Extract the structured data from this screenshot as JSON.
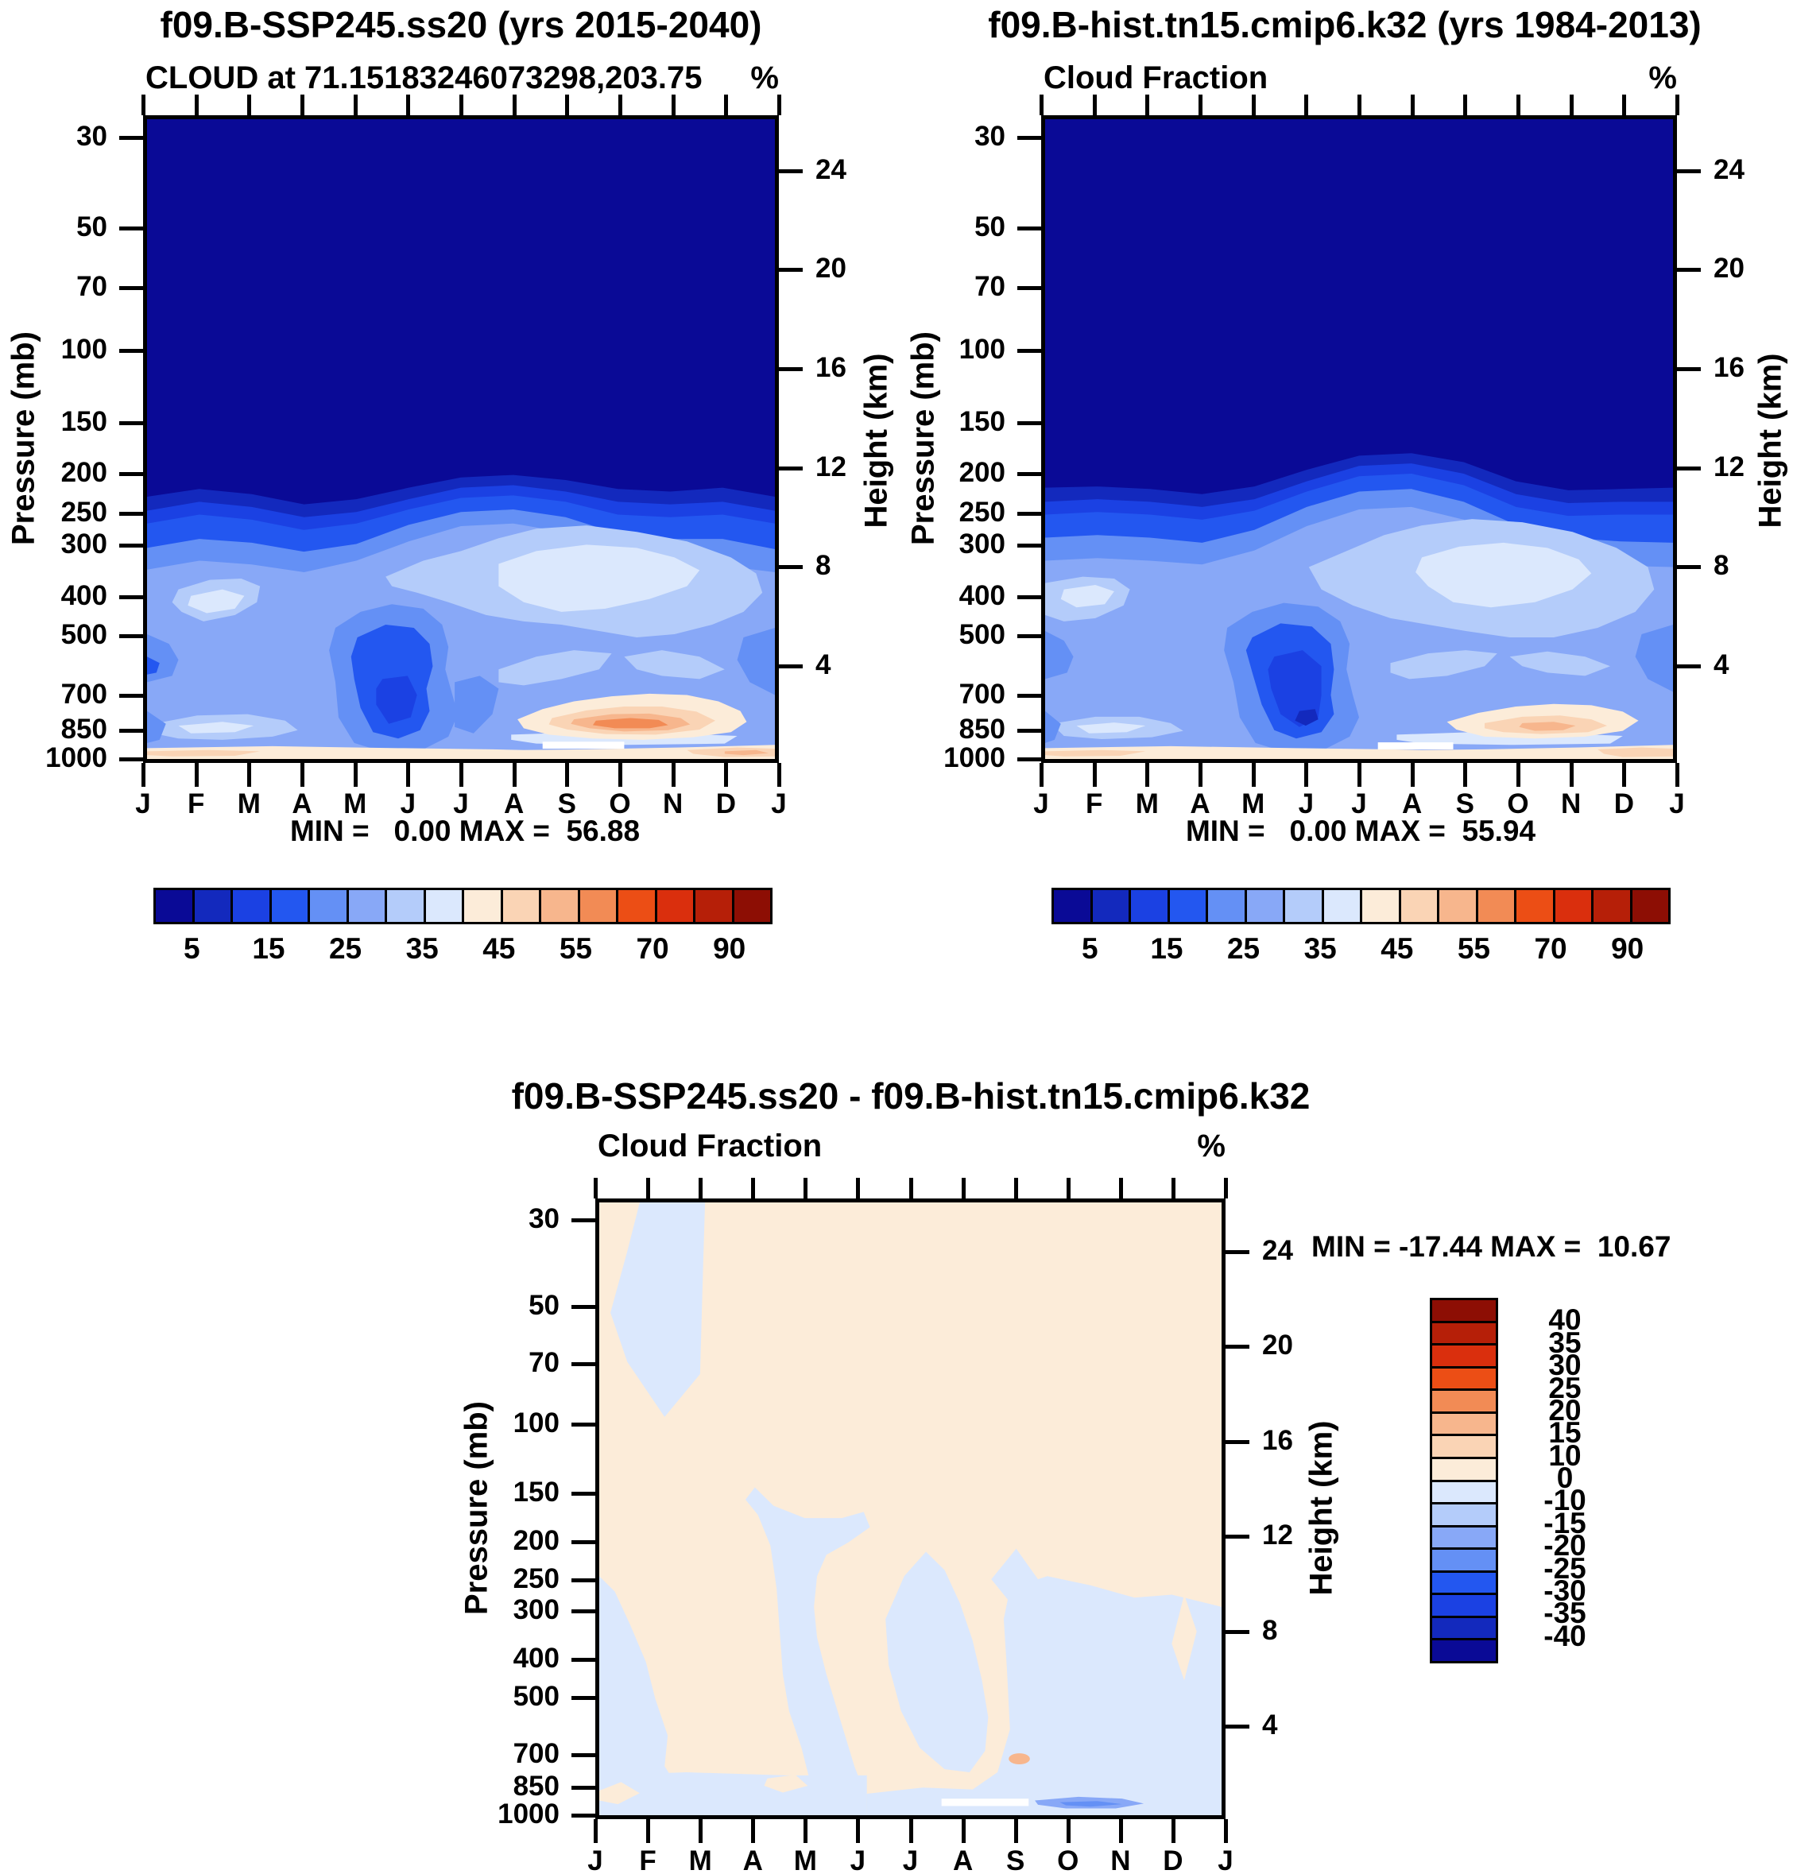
{
  "figure": {
    "background": "#ffffff",
    "months": [
      "J",
      "F",
      "M",
      "A",
      "M",
      "J",
      "J",
      "A",
      "S",
      "O",
      "N",
      "D",
      "J"
    ],
    "pressure_axis_label": "Pressure (mb)",
    "height_axis_label": "Height (km)",
    "pressure_ticks": [
      "30",
      "50",
      "70",
      "100",
      "150",
      "200",
      "250",
      "300",
      "400",
      "500",
      "700",
      "850",
      "1000"
    ],
    "height_ticks": [
      "24",
      "20",
      "16",
      "12",
      "8",
      "4"
    ],
    "unit": "%"
  },
  "panels": [
    {
      "title": "f09.B-SSP245.ss20 (yrs 2015-2040)",
      "subtitle": "CLOUD at 71.15183246073298,203.75",
      "unit": "%",
      "stats_text": "MIN =   0.00 MAX =  56.88"
    },
    {
      "title": "f09.B-hist.tn15.cmip6.k32 (yrs 1984-2013)",
      "subtitle": "Cloud Fraction",
      "unit": "%",
      "stats_text": "MIN =   0.00 MAX =  55.94"
    },
    {
      "title": "f09.B-SSP245.ss20 - f09.B-hist.tn15.cmip6.k32",
      "subtitle": "Cloud Fraction",
      "unit": "%",
      "stats_text": "MIN = -17.44 MAX =  10.67"
    }
  ],
  "colorbars": {
    "cloud": {
      "labels": [
        "5",
        "15",
        "25",
        "35",
        "45",
        "55",
        "70",
        "90"
      ],
      "colors": [
        "#0a0a96",
        "#1329bd",
        "#1b41e3",
        "#2357f0",
        "#6490f5",
        "#88a8f7",
        "#b4ccfa",
        "#dbe8fd",
        "#fcecd9",
        "#fad4b5",
        "#f7b68d",
        "#f28b55",
        "#ec4e15",
        "#da2f0d",
        "#b61f08",
        "#8d0e04"
      ]
    },
    "diff": {
      "labels": [
        "40",
        "35",
        "30",
        "25",
        "20",
        "15",
        "10",
        "0",
        "-10",
        "-15",
        "-20",
        "-25",
        "-30",
        "-35",
        "-40"
      ],
      "colors": [
        "#8d0e04",
        "#b61f08",
        "#da2f0d",
        "#ec4e15",
        "#f28b55",
        "#f7b68d",
        "#fad4b5",
        "#fcecd9",
        "#dbe8fd",
        "#b4ccfa",
        "#88a8f7",
        "#6490f5",
        "#2357f0",
        "#1b41e3",
        "#1329bd",
        "#0a0a96"
      ]
    }
  },
  "chart_data": [
    {
      "type": "heatmap",
      "subtype": "filled-contour pressure-vs-month",
      "title": "f09.B-SSP245.ss20 (yrs 2015-2040)",
      "field_label": "CLOUD at 71.15183246073298,203.75",
      "units": "%",
      "x_ticks": [
        "J",
        "F",
        "M",
        "A",
        "M",
        "J",
        "J",
        "A",
        "S",
        "O",
        "N",
        "D",
        "J"
      ],
      "y_left_label": "Pressure (mb)",
      "y_left_ticks": [
        30,
        50,
        70,
        100,
        150,
        200,
        250,
        300,
        400,
        500,
        700,
        850,
        1000
      ],
      "y_left_scale": "log, inverted (30 top - 1000 bottom)",
      "y_right_label": "Height (km)",
      "y_right_ticks": [
        24,
        20,
        16,
        12,
        8,
        4
      ],
      "contour_levels": [
        5,
        10,
        15,
        20,
        25,
        30,
        35,
        40,
        45,
        50,
        55,
        60,
        70,
        80,
        90
      ],
      "min": 0.0,
      "max": 56.88,
      "legend_position": "horizontal colorbar below plot",
      "description": "Near-zero cloud (dark navy) above ~200 mb all year; cloud fraction increases below 250 mb; bright-blue minimum pocket (15-25%) Apr-Jul at 450-900 mb; pale 35-40% region Aug-Nov at 300-400 mb; 40-57% orange maximum Sep-Nov near 850-950 mb; thin high-cloud-fraction layer at 1000 mb."
    },
    {
      "type": "heatmap",
      "subtype": "filled-contour pressure-vs-month",
      "title": "f09.B-hist.tn15.cmip6.k32 (yrs 1984-2013)",
      "field_label": "Cloud Fraction",
      "units": "%",
      "x_ticks": [
        "J",
        "F",
        "M",
        "A",
        "M",
        "J",
        "J",
        "A",
        "S",
        "O",
        "N",
        "D",
        "J"
      ],
      "y_left_label": "Pressure (mb)",
      "y_left_ticks": [
        30,
        50,
        70,
        100,
        150,
        200,
        250,
        300,
        400,
        500,
        700,
        850,
        1000
      ],
      "y_left_scale": "log, inverted (30 top - 1000 bottom)",
      "y_right_label": "Height (km)",
      "y_right_ticks": [
        24,
        20,
        16,
        12,
        8,
        4
      ],
      "contour_levels": [
        5,
        10,
        15,
        20,
        25,
        30,
        35,
        40,
        45,
        50,
        55,
        60,
        70,
        80,
        90
      ],
      "min": 0.0,
      "max": 55.94,
      "legend_position": "horizontal colorbar below plot",
      "description": "Same structure as SSP245 panel; deeper blue minimum core May-Jul at 500-900 mb and smaller orange maximum centered on Oct near 900 mb."
    },
    {
      "type": "heatmap",
      "subtype": "filled-contour difference pressure-vs-month",
      "title": "f09.B-SSP245.ss20 - f09.B-hist.tn15.cmip6.k32",
      "field_label": "Cloud Fraction",
      "units": "%",
      "x_ticks": [
        "J",
        "F",
        "M",
        "A",
        "M",
        "J",
        "J",
        "A",
        "S",
        "O",
        "N",
        "D",
        "J"
      ],
      "y_left_label": "Pressure (mb)",
      "y_left_ticks": [
        30,
        50,
        70,
        100,
        150,
        200,
        250,
        300,
        400,
        500,
        700,
        850,
        1000
      ],
      "y_left_scale": "log, inverted (30 top - 1000 bottom)",
      "y_right_label": "Height (km)",
      "y_right_ticks": [
        24,
        20,
        16,
        12,
        8,
        4
      ],
      "contour_levels": [
        -40,
        -35,
        -30,
        -25,
        -20,
        -15,
        -10,
        0,
        10,
        15,
        20,
        25,
        30,
        35,
        40
      ],
      "min": -17.44,
      "max": 10.67,
      "legend_position": "vertical colorbar right of plot",
      "description": "Differences mostly within -10..+10%: weak positive (cream 0-10%) over most of the domain, weak negative (pale blue -10-0%) patches Jan-Feb in stratosphere, along January column, Apr-May mid-levels, and broadly below 500 mb; tiny 10-15% spot near Sep 870 mb and a -15 to -20% streak near Oct 980 mb."
    }
  ]
}
